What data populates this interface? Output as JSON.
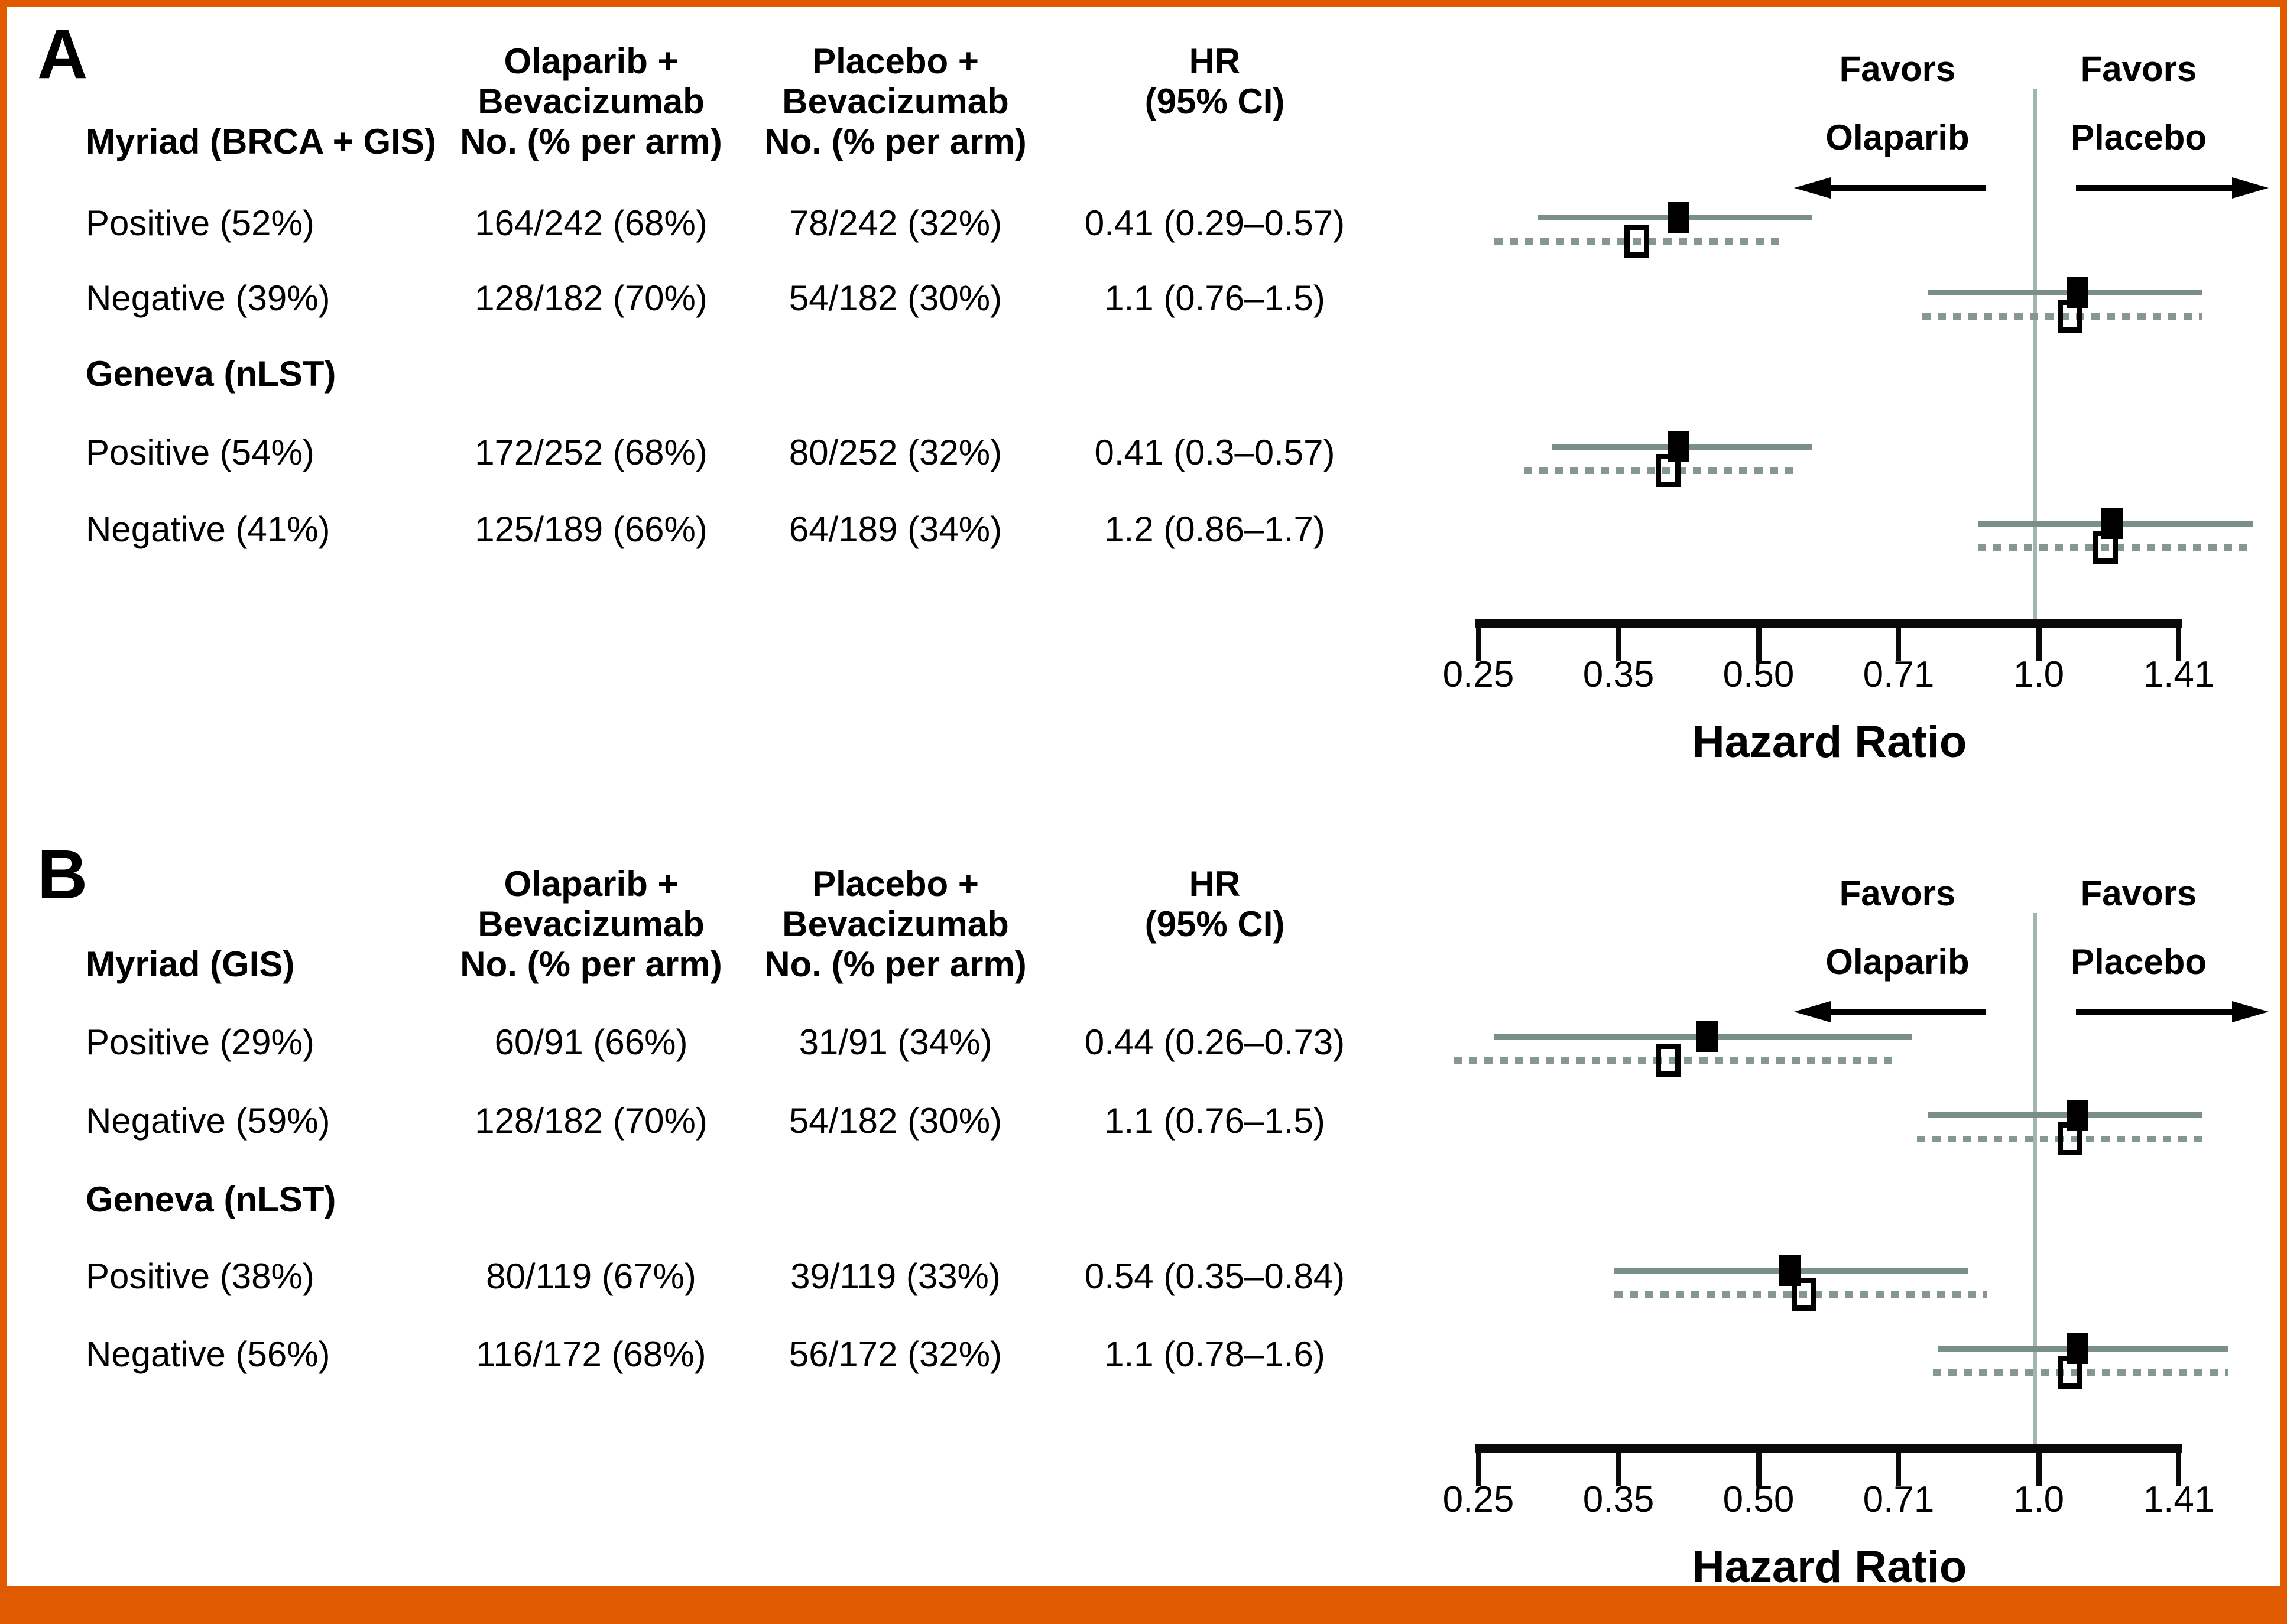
{
  "page": {
    "background": "#ffffff",
    "accent_orange": "#e05a00"
  },
  "colors": {
    "ci_solid": "#7b8f89",
    "ci_dashed": "#84988f",
    "ref_line": "#a3b5b0",
    "marker_fill": "#000000",
    "axis": "#0a0a0a",
    "text": "#000000"
  },
  "axis": {
    "tick_values": [
      0.25,
      0.3536,
      0.5,
      0.7071,
      1.0,
      1.4142
    ],
    "tick_labels": [
      "0.25",
      "0.35",
      "0.50",
      "0.71",
      "1.0",
      "1.41"
    ],
    "scale": "log2",
    "title": "Hazard Ratio"
  },
  "panels": [
    {
      "label": "A",
      "col_headers": {
        "olaparib": [
          "Olaparib +",
          "Bevacizumab",
          "No. (% per arm)"
        ],
        "placebo": [
          "Placebo +",
          "Bevacizumab",
          "No. (% per arm)"
        ],
        "hr": [
          "HR",
          "(95% CI)"
        ]
      },
      "group1_label": "Myriad (BRCA + GIS)",
      "favors_left": [
        "Favors",
        "Olaparib"
      ],
      "favors_right": [
        "Favors",
        "Placebo"
      ],
      "axis_label": "Hazard Ratio",
      "rows": [
        {
          "type": "data",
          "label": "Positive (52%)",
          "olaparib": "164/242 (68%)",
          "placebo": "78/242 (32%)",
          "hr_text": "0.41 (0.29–0.57)",
          "solid": {
            "hr": 0.41,
            "lo": 0.29,
            "hi": 0.57
          },
          "dashed": {
            "hr": 0.37,
            "lo": 0.26,
            "hi": 0.53
          }
        },
        {
          "type": "data",
          "label": "Negative (39%)",
          "olaparib": "128/182 (70%)",
          "placebo": "54/182 (30%)",
          "hr_text": "1.1 (0.76–1.5)",
          "solid": {
            "hr": 1.1,
            "lo": 0.76,
            "hi": 1.5
          },
          "dashed": {
            "hr": 1.08,
            "lo": 0.75,
            "hi": 1.5
          }
        },
        {
          "type": "section",
          "label": "Geneva (nLST)"
        },
        {
          "type": "data",
          "label": "Positive (54%)",
          "olaparib": "172/252 (68%)",
          "placebo": "80/252 (32%)",
          "hr_text": "0.41 (0.3–0.57)",
          "solid": {
            "hr": 0.41,
            "lo": 0.3,
            "hi": 0.57
          },
          "dashed": {
            "hr": 0.4,
            "lo": 0.28,
            "hi": 0.55
          }
        },
        {
          "type": "data",
          "label": "Negative (41%)",
          "olaparib": "125/189 (66%)",
          "placebo": "64/189 (34%)",
          "hr_text": "1.2 (0.86–1.7)",
          "solid": {
            "hr": 1.2,
            "lo": 0.86,
            "hi": 1.7
          },
          "dashed": {
            "hr": 1.18,
            "lo": 0.86,
            "hi": 1.7
          }
        }
      ]
    },
    {
      "label": "B",
      "col_headers": {
        "olaparib": [
          "Olaparib +",
          "Bevacizumab",
          "No. (% per arm)"
        ],
        "placebo": [
          "Placebo +",
          "Bevacizumab",
          "No. (% per arm)"
        ],
        "hr": [
          "HR",
          "(95% CI)"
        ]
      },
      "group1_label": "Myriad (GIS)",
      "favors_left": [
        "Favors",
        "Olaparib"
      ],
      "favors_right": [
        "Favors",
        "Placebo"
      ],
      "axis_label": "Hazard Ratio",
      "rows": [
        {
          "type": "data",
          "label": "Positive (29%)",
          "olaparib": "60/91 (66%)",
          "placebo": "31/91 (34%)",
          "hr_text": "0.44 (0.26–0.73)",
          "solid": {
            "hr": 0.44,
            "lo": 0.26,
            "hi": 0.73
          },
          "dashed": {
            "hr": 0.4,
            "lo": 0.235,
            "hi": 0.7
          }
        },
        {
          "type": "data",
          "label": "Negative (59%)",
          "olaparib": "128/182 (70%)",
          "placebo": "54/182 (30%)",
          "hr_text": "1.1 (0.76–1.5)",
          "solid": {
            "hr": 1.1,
            "lo": 0.76,
            "hi": 1.5
          },
          "dashed": {
            "hr": 1.08,
            "lo": 0.74,
            "hi": 1.5
          }
        },
        {
          "type": "section",
          "label": "Geneva (nLST)"
        },
        {
          "type": "data",
          "label": "Positive (38%)",
          "olaparib": "80/119 (67%)",
          "placebo": "39/119 (33%)",
          "hr_text": "0.54 (0.35–0.84)",
          "solid": {
            "hr": 0.54,
            "lo": 0.35,
            "hi": 0.84
          },
          "dashed": {
            "hr": 0.56,
            "lo": 0.35,
            "hi": 0.88
          }
        },
        {
          "type": "data",
          "label": "Negative (56%)",
          "olaparib": "116/172 (68%)",
          "placebo": "56/172 (32%)",
          "hr_text": "1.1 (0.78–1.6)",
          "solid": {
            "hr": 1.1,
            "lo": 0.78,
            "hi": 1.6
          },
          "dashed": {
            "hr": 1.08,
            "lo": 0.77,
            "hi": 1.6
          }
        }
      ]
    }
  ],
  "chart_data": [
    {
      "type": "scatter",
      "subtype": "forest-plot",
      "panel": "A",
      "title": "Myriad (BRCA + GIS) / Geneva (nLST)",
      "xlabel": "Hazard Ratio",
      "x_scale": "log2",
      "x_ticks": [
        0.25,
        0.35,
        0.5,
        0.71,
        1.0,
        1.41
      ],
      "reference_line": 1.0,
      "annotations": [
        "Favors Olaparib (left)",
        "Favors Placebo (right)"
      ],
      "categories": [
        "Myriad Positive (52%)",
        "Myriad Negative (39%)",
        "Geneva Positive (54%)",
        "Geneva Negative (41%)"
      ],
      "series": [
        {
          "name": "solid-filled-square",
          "hr": [
            0.41,
            1.1,
            0.41,
            1.2
          ],
          "ci_lo": [
            0.29,
            0.76,
            0.3,
            0.86
          ],
          "ci_hi": [
            0.57,
            1.5,
            0.57,
            1.7
          ]
        },
        {
          "name": "dashed-open-square",
          "hr": [
            0.37,
            1.08,
            0.4,
            1.18
          ],
          "ci_lo": [
            0.26,
            0.75,
            0.28,
            0.86
          ],
          "ci_hi": [
            0.53,
            1.5,
            0.55,
            1.7
          ]
        }
      ]
    },
    {
      "type": "scatter",
      "subtype": "forest-plot",
      "panel": "B",
      "title": "Myriad (GIS) / Geneva (nLST)",
      "xlabel": "Hazard Ratio",
      "x_scale": "log2",
      "x_ticks": [
        0.25,
        0.35,
        0.5,
        0.71,
        1.0,
        1.41
      ],
      "reference_line": 1.0,
      "annotations": [
        "Favors Olaparib (left)",
        "Favors Placebo (right)"
      ],
      "categories": [
        "Myriad Positive (29%)",
        "Myriad Negative (59%)",
        "Geneva Positive (38%)",
        "Geneva Negative (56%)"
      ],
      "series": [
        {
          "name": "solid-filled-square",
          "hr": [
            0.44,
            1.1,
            0.54,
            1.1
          ],
          "ci_lo": [
            0.26,
            0.76,
            0.35,
            0.78
          ],
          "ci_hi": [
            0.73,
            1.5,
            0.84,
            1.6
          ]
        },
        {
          "name": "dashed-open-square",
          "hr": [
            0.4,
            1.08,
            0.56,
            1.08
          ],
          "ci_lo": [
            0.235,
            0.74,
            0.35,
            0.77
          ],
          "ci_hi": [
            0.7,
            1.5,
            0.88,
            1.6
          ]
        }
      ]
    }
  ]
}
